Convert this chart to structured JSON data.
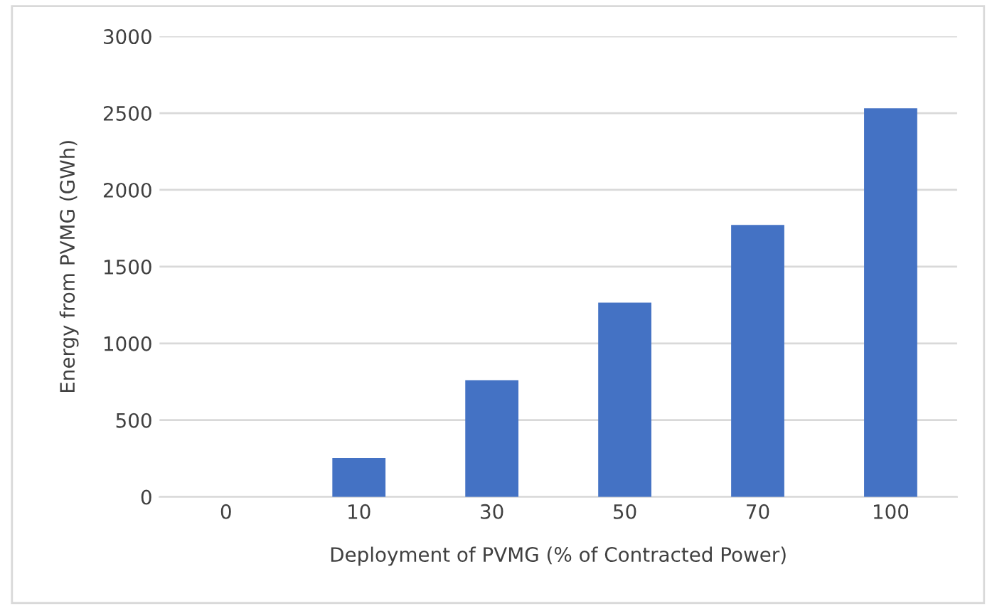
{
  "chart_data": {
    "type": "bar",
    "xlabel": "Deployment of PVMG (% of Contracted Power)",
    "ylabel": "Energy from PVMG (GWh)",
    "categories": [
      "0",
      "10",
      "30",
      "50",
      "70",
      "100"
    ],
    "values": [
      0,
      253,
      760,
      1266,
      1772,
      2532
    ],
    "color": "#4472c4",
    "ylim": [
      0,
      3000
    ],
    "yticks": [
      0,
      500,
      1000,
      1500,
      2000,
      2500,
      3000
    ],
    "grid": "y",
    "legend": false
  }
}
